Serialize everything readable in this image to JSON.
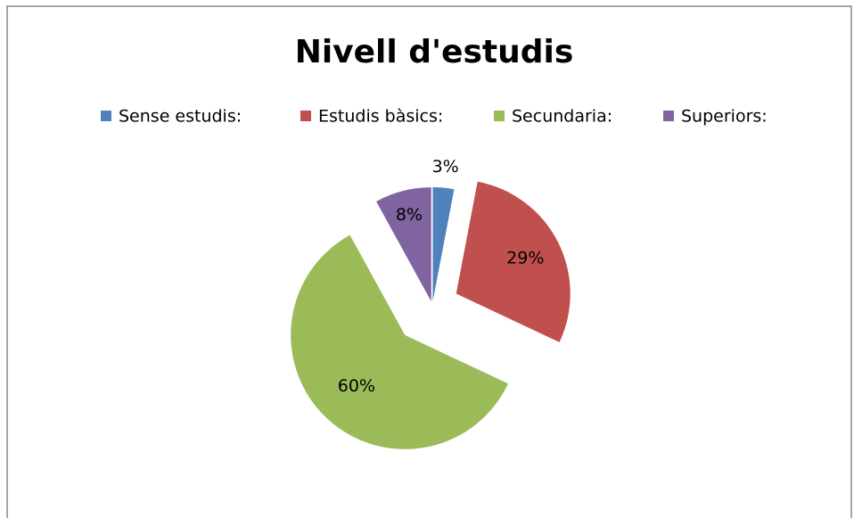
{
  "chart_data": {
    "type": "pie",
    "title": "Nivell d'estudis",
    "categories": [
      "Sense estudis:",
      "Estudis bàsics:",
      "Secundaria:",
      "Superiors:"
    ],
    "values": [
      3,
      29,
      60,
      8
    ],
    "value_labels": [
      "3%",
      "29%",
      "60%",
      "8%"
    ],
    "colors": [
      "#4f81bd",
      "#c0504d",
      "#9bbb59",
      "#8064a2"
    ],
    "legend": "top"
  }
}
